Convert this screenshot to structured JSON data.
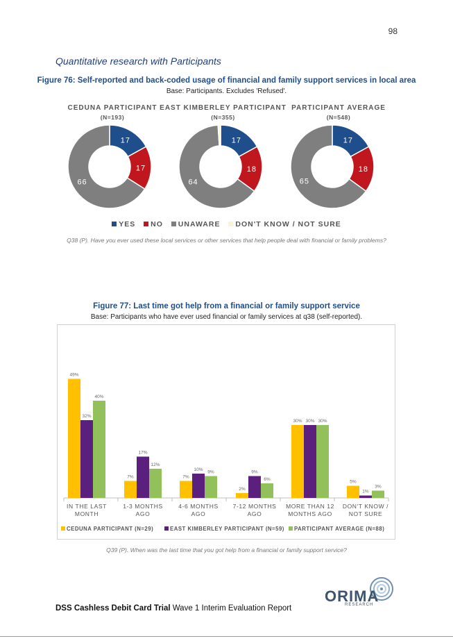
{
  "page": {
    "number": "98",
    "section_title": "Quantitative research with Participants"
  },
  "figure76": {
    "title": "Figure 76: Self-reported and back-coded usage of financial and family support services in local area",
    "base": "Base: Participants. Excludes 'Refused'.",
    "question": "Q38 (P). Have you ever used these local services or other services that help people deal with financial or family problems?"
  },
  "figure77": {
    "title": "Figure 77: Last time got help from a financial or family support service",
    "base": "Base: Participants who have ever used financial or family services at q38 (self-reported).",
    "question": "Q39 (P). When was the last time that you got help from a financial or family support service?"
  },
  "footer": {
    "bold": "DSS Cashless Debit Card Trial",
    "rest": " Wave 1 Interim Evaluation Report",
    "logo": "ORIMA",
    "logo_sub": "RESEARCH"
  },
  "colors": {
    "yes": "#1f4e8c",
    "no": "#c0161e",
    "unaware": "#7f7f7f",
    "dont_know": "#fdf3cf",
    "ceduna": "#ffc000",
    "east_kimberley": "#5b1f7d",
    "average": "#92c05a"
  },
  "chart_data": [
    {
      "type": "pie",
      "donut": true,
      "title": "CEDUNA PARTICIPANT",
      "subtitle": "(N=193)",
      "slices": [
        {
          "label": "YES",
          "value": 17,
          "text": "17"
        },
        {
          "label": "NO",
          "value": 17,
          "text": "17"
        },
        {
          "label": "UNAWARE",
          "value": 66,
          "text": "66"
        },
        {
          "label": "DON'T KNOW / NOT SURE",
          "value": 0,
          "text": ""
        }
      ]
    },
    {
      "type": "pie",
      "donut": true,
      "title": "EAST KIMBERLEY PARTICIPANT",
      "subtitle": "(N=355)",
      "slices": [
        {
          "label": "YES",
          "value": 17,
          "text": "17"
        },
        {
          "label": "NO",
          "value": 18,
          "text": "18"
        },
        {
          "label": "UNAWARE",
          "value": 64,
          "text": "64"
        },
        {
          "label": "DON'T KNOW / NOT SURE",
          "value": 1,
          "text": ""
        }
      ]
    },
    {
      "type": "pie",
      "donut": true,
      "title": "PARTICIPANT AVERAGE",
      "subtitle": "(N=548)",
      "slices": [
        {
          "label": "YES",
          "value": 17,
          "text": "17"
        },
        {
          "label": "NO",
          "value": 18,
          "text": "18"
        },
        {
          "label": "UNAWARE",
          "value": 65,
          "text": "65"
        },
        {
          "label": "DON'T KNOW / NOT SURE",
          "value": 0,
          "text": ""
        }
      ]
    },
    {
      "type": "bar",
      "categories": [
        [
          "IN THE LAST",
          "MONTH"
        ],
        [
          "1-3 MONTHS",
          "AGO"
        ],
        [
          "4-6 MONTHS",
          "AGO"
        ],
        [
          "7-12 MONTHS",
          "AGO"
        ],
        [
          "MORE THAN 12",
          "MONTHS AGO"
        ],
        [
          "DON'T KNOW /",
          "NOT SURE"
        ]
      ],
      "series": [
        {
          "name": "CEDUNA PARTICIPANT (N=29)",
          "values": [
            49,
            7,
            7,
            2,
            30,
            5
          ]
        },
        {
          "name": "EAST KIMBERLEY PARTICIPANT (N=59)",
          "values": [
            32,
            17,
            10,
            9,
            30,
            1
          ]
        },
        {
          "name": "PARTICIPANT AVERAGE (N=88)",
          "values": [
            40,
            12,
            9,
            6,
            30,
            3
          ]
        }
      ],
      "value_suffix": "%",
      "ylim": [
        0,
        50
      ],
      "grid": false,
      "legend": "bottom"
    }
  ]
}
